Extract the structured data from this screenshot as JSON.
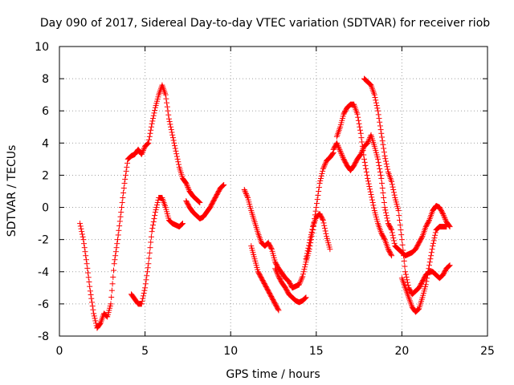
{
  "chart_data": {
    "type": "scatter",
    "title": "Day 090 of 2017, Sidereal Day-to-day VTEC variation (SDTVAR) for receiver riob",
    "xlabel": "GPS time / hours",
    "ylabel": "SDTVAR / TECUs",
    "xlim": [
      0,
      25
    ],
    "ylim": [
      -8,
      10
    ],
    "xticks": [
      "0",
      "5",
      "10",
      "15",
      "20",
      "25"
    ],
    "yticks": [
      "-8",
      "-6",
      "-4",
      "-2",
      "0",
      "2",
      "4",
      "6",
      "8",
      "10"
    ],
    "grid": true,
    "marker": "+",
    "color": "#ff0000",
    "segments": [
      [
        [
          1.2,
          -1.0
        ],
        [
          1.4,
          -2.0
        ],
        [
          1.6,
          -3.5
        ],
        [
          1.8,
          -5.2
        ],
        [
          2.0,
          -6.6
        ],
        [
          2.2,
          -7.5
        ],
        [
          2.4,
          -7.2
        ],
        [
          2.6,
          -6.6
        ],
        [
          2.8,
          -6.8
        ],
        [
          3.0,
          -6.0
        ],
        [
          3.2,
          -3.5
        ],
        [
          3.4,
          -2.0
        ],
        [
          3.6,
          -0.3
        ],
        [
          3.8,
          1.5
        ],
        [
          4.0,
          3.0
        ],
        [
          4.2,
          3.2
        ],
        [
          4.4,
          3.3
        ],
        [
          4.6,
          3.6
        ],
        [
          4.8,
          3.3
        ],
        [
          5.0,
          3.8
        ],
        [
          5.2,
          4.0
        ],
        [
          5.4,
          5.2
        ],
        [
          5.6,
          6.2
        ],
        [
          5.8,
          7.0
        ],
        [
          6.0,
          7.6
        ],
        [
          6.2,
          7.0
        ],
        [
          6.4,
          5.5
        ],
        [
          6.6,
          4.5
        ],
        [
          6.8,
          3.5
        ],
        [
          7.0,
          2.5
        ],
        [
          7.2,
          1.8
        ],
        [
          7.4,
          1.5
        ],
        [
          7.6,
          1.0
        ],
        [
          7.8,
          0.7
        ],
        [
          8.0,
          0.5
        ],
        [
          8.2,
          0.3
        ]
      ],
      [
        [
          4.2,
          -5.4
        ],
        [
          4.4,
          -5.7
        ],
        [
          4.6,
          -6.0
        ],
        [
          4.8,
          -6.0
        ],
        [
          5.0,
          -5.0
        ],
        [
          5.2,
          -3.5
        ],
        [
          5.4,
          -1.5
        ],
        [
          5.6,
          -0.3
        ],
        [
          5.8,
          0.6
        ],
        [
          6.0,
          0.6
        ],
        [
          6.2,
          0.0
        ],
        [
          6.4,
          -0.8
        ],
        [
          6.6,
          -1.0
        ],
        [
          6.8,
          -1.1
        ],
        [
          7.0,
          -1.2
        ],
        [
          7.2,
          -1.0
        ]
      ],
      [
        [
          7.4,
          0.4
        ],
        [
          7.6,
          0.0
        ],
        [
          7.8,
          -0.3
        ],
        [
          8.0,
          -0.5
        ],
        [
          8.2,
          -0.7
        ],
        [
          8.4,
          -0.6
        ],
        [
          8.6,
          -0.3
        ],
        [
          8.8,
          0.0
        ],
        [
          9.0,
          0.4
        ],
        [
          9.2,
          0.8
        ],
        [
          9.4,
          1.2
        ],
        [
          9.6,
          1.4
        ]
      ],
      [
        [
          10.8,
          1.1
        ],
        [
          11.0,
          0.6
        ],
        [
          11.2,
          -0.2
        ],
        [
          11.4,
          -0.9
        ],
        [
          11.6,
          -1.6
        ],
        [
          11.8,
          -2.2
        ],
        [
          12.0,
          -2.4
        ],
        [
          12.2,
          -2.2
        ],
        [
          12.4,
          -2.6
        ],
        [
          12.6,
          -3.4
        ],
        [
          12.8,
          -3.8
        ],
        [
          13.0,
          -4.1
        ],
        [
          13.2,
          -4.4
        ],
        [
          13.4,
          -4.6
        ],
        [
          13.6,
          -5.0
        ],
        [
          13.8,
          -4.9
        ],
        [
          14.0,
          -4.8
        ],
        [
          14.2,
          -4.3
        ],
        [
          14.4,
          -3.4
        ],
        [
          14.6,
          -2.6
        ],
        [
          14.8,
          -1.4
        ],
        [
          15.0,
          0.0
        ],
        [
          15.2,
          1.5
        ],
        [
          15.4,
          2.4
        ],
        [
          15.6,
          2.9
        ],
        [
          15.8,
          3.1
        ],
        [
          16.0,
          3.4
        ]
      ],
      [
        [
          11.2,
          -2.4
        ],
        [
          11.4,
          -3.2
        ],
        [
          11.6,
          -4.0
        ],
        [
          11.8,
          -4.4
        ],
        [
          12.0,
          -4.8
        ],
        [
          12.2,
          -5.2
        ],
        [
          12.4,
          -5.6
        ],
        [
          12.6,
          -6.0
        ],
        [
          12.8,
          -6.4
        ]
      ],
      [
        [
          12.6,
          -3.8
        ],
        [
          12.8,
          -4.3
        ],
        [
          13.0,
          -4.7
        ],
        [
          13.2,
          -5.0
        ],
        [
          13.4,
          -5.4
        ],
        [
          13.6,
          -5.6
        ],
        [
          13.8,
          -5.8
        ],
        [
          14.0,
          -5.9
        ],
        [
          14.2,
          -5.8
        ],
        [
          14.4,
          -5.6
        ]
      ],
      [
        [
          14.4,
          -3.2
        ],
        [
          14.6,
          -2.2
        ],
        [
          14.8,
          -1.2
        ],
        [
          15.0,
          -0.6
        ],
        [
          15.2,
          -0.4
        ],
        [
          15.4,
          -0.8
        ],
        [
          15.6,
          -1.8
        ],
        [
          15.8,
          -2.6
        ]
      ],
      [
        [
          16.0,
          3.6
        ],
        [
          16.2,
          4.0
        ],
        [
          16.4,
          3.5
        ],
        [
          16.6,
          3.0
        ],
        [
          16.8,
          2.6
        ],
        [
          17.0,
          2.3
        ],
        [
          17.2,
          2.6
        ],
        [
          17.4,
          3.0
        ],
        [
          17.6,
          3.3
        ],
        [
          17.8,
          3.8
        ],
        [
          18.0,
          4.0
        ],
        [
          18.2,
          4.5
        ],
        [
          18.4,
          3.8
        ],
        [
          18.6,
          3.0
        ],
        [
          18.8,
          1.8
        ],
        [
          19.0,
          0.0
        ],
        [
          19.2,
          -1.0
        ],
        [
          19.4,
          -1.4
        ],
        [
          19.6,
          -2.4
        ],
        [
          19.8,
          -2.6
        ],
        [
          20.0,
          -2.8
        ],
        [
          20.2,
          -3.0
        ],
        [
          20.4,
          -2.9
        ],
        [
          20.6,
          -2.8
        ],
        [
          20.8,
          -2.6
        ],
        [
          21.0,
          -2.2
        ],
        [
          21.2,
          -1.8
        ],
        [
          21.4,
          -1.2
        ],
        [
          21.6,
          -0.8
        ],
        [
          21.8,
          -0.2
        ],
        [
          22.0,
          0.1
        ],
        [
          22.2,
          0.0
        ],
        [
          22.4,
          -0.4
        ],
        [
          22.6,
          -0.9
        ],
        [
          22.8,
          -1.2
        ]
      ],
      [
        [
          16.2,
          4.4
        ],
        [
          16.4,
          5.0
        ],
        [
          16.6,
          5.8
        ],
        [
          16.8,
          6.2
        ],
        [
          17.0,
          6.4
        ],
        [
          17.2,
          6.4
        ],
        [
          17.4,
          5.8
        ],
        [
          17.6,
          4.6
        ],
        [
          17.8,
          3.0
        ],
        [
          18.0,
          1.8
        ],
        [
          18.2,
          0.8
        ],
        [
          18.4,
          -0.2
        ],
        [
          18.6,
          -1.0
        ],
        [
          18.8,
          -1.6
        ],
        [
          19.0,
          -2.0
        ],
        [
          19.2,
          -2.6
        ],
        [
          19.4,
          -3.0
        ]
      ],
      [
        [
          17.8,
          8.0
        ],
        [
          18.0,
          7.8
        ],
        [
          18.2,
          7.6
        ],
        [
          18.4,
          7.0
        ],
        [
          18.6,
          6.0
        ],
        [
          18.8,
          4.6
        ],
        [
          19.0,
          3.2
        ],
        [
          19.2,
          2.2
        ],
        [
          19.4,
          1.6
        ],
        [
          19.6,
          0.6
        ],
        [
          19.8,
          -0.2
        ],
        [
          20.0,
          -2.0
        ],
        [
          20.2,
          -4.0
        ],
        [
          20.4,
          -5.0
        ],
        [
          20.6,
          -5.4
        ],
        [
          20.8,
          -5.2
        ],
        [
          21.0,
          -5.0
        ],
        [
          21.2,
          -4.6
        ],
        [
          21.4,
          -4.2
        ],
        [
          21.6,
          -4.0
        ],
        [
          21.8,
          -4.0
        ],
        [
          22.0,
          -4.2
        ],
        [
          22.2,
          -4.4
        ],
        [
          22.4,
          -4.2
        ],
        [
          22.6,
          -3.8
        ],
        [
          22.8,
          -3.6
        ]
      ],
      [
        [
          20.0,
          -4.4
        ],
        [
          20.2,
          -5.0
        ],
        [
          20.4,
          -5.6
        ],
        [
          20.6,
          -6.2
        ],
        [
          20.8,
          -6.5
        ],
        [
          21.0,
          -6.3
        ],
        [
          21.2,
          -5.6
        ],
        [
          21.4,
          -4.8
        ],
        [
          21.6,
          -3.6
        ],
        [
          21.8,
          -2.4
        ],
        [
          22.0,
          -1.4
        ],
        [
          22.2,
          -1.2
        ],
        [
          22.4,
          -1.2
        ],
        [
          22.6,
          -1.2
        ]
      ]
    ]
  }
}
